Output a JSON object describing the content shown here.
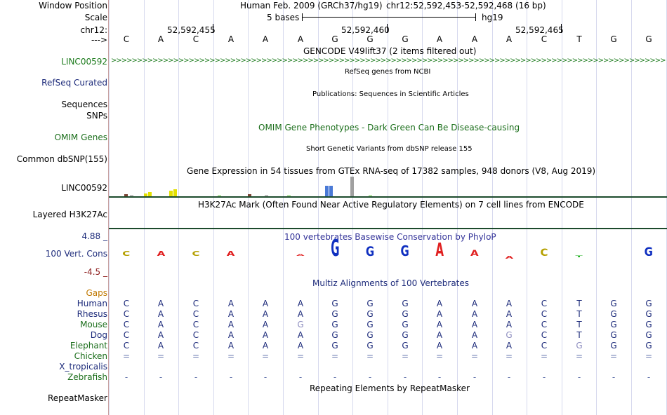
{
  "header": {
    "window_position_label": "Window Position",
    "scale_label": "Scale",
    "chr_label": "chr12:",
    "arrow_label": "--->",
    "assembly": "Human Feb. 2009 (GRCh37/hg19)",
    "position": "chr12:52,592,453-52,592,468 (16 bp)",
    "scale_text": "5 bases",
    "hg_label": "hg19",
    "ticks": [
      "52,592,455",
      "52,592,460",
      "52,592,465"
    ]
  },
  "bases": [
    "C",
    "A",
    "C",
    "A",
    "A",
    "A",
    "G",
    "G",
    "G",
    "A",
    "A",
    "A",
    "C",
    "T",
    "G",
    "G"
  ],
  "gencode": {
    "title": "GENCODE V49lift37 (2 items filtered out)",
    "gene_label": "LINC00592",
    "color": "#1b7a1b"
  },
  "refseq": {
    "title": "RefSeq genes from NCBI",
    "label": "RefSeq Curated",
    "color": "#1c2a7a"
  },
  "publications": {
    "title": "Publications: Sequences in Scientific Articles",
    "label1": "Sequences",
    "label2": "SNPs"
  },
  "omim": {
    "title": "OMIM Gene Phenotypes - Dark Green Can Be Disease-causing",
    "label": "OMIM Genes",
    "color": "#1b6e1b"
  },
  "dbsnp": {
    "title": "Short Genetic Variants from dbSNP release 155",
    "label": "Common dbSNP(155)"
  },
  "gtex": {
    "title": "Gene Expression in 54 tissues from GTEx RNA-seq of 17382 samples, 948 donors (V8, Aug 2019)",
    "label": "LINC00592",
    "bars": [
      {
        "color": "#7a4433",
        "value": 0.1
      },
      {
        "color": "#c0c0c0",
        "value": 0.05
      },
      {
        "color": "#e3e000",
        "value": 0.15
      },
      {
        "color": "#e3e000",
        "value": 0.2
      },
      {
        "color": "#e3e000",
        "value": 0.3
      },
      {
        "color": "#e3e000",
        "value": 0.35
      },
      {
        "color": "#b8e8a8",
        "value": 0.06
      },
      {
        "color": "#7a4433",
        "value": 0.1
      },
      {
        "color": "#c0c0c0",
        "value": 0.06
      },
      {
        "color": "#b8e8a8",
        "value": 0.08
      },
      {
        "color": "#4a7ad6",
        "value": 0.55
      },
      {
        "color": "#4a7ad6",
        "value": 0.55
      },
      {
        "color": "#a0a0a0",
        "value": 1.0
      },
      {
        "color": "#b8e8a8",
        "value": 0.06
      }
    ]
  },
  "h3k27ac": {
    "title": "H3K27Ac Mark (Often Found Near Active Regulatory Elements) on 7 cell lines from ENCODE",
    "label": "Layered H3K27Ac"
  },
  "phylop": {
    "title": "100 vertebrates Basewise Conservation by PhyloP",
    "label": "100 Vert. Cons",
    "max_label": "4.88 _",
    "min_label": "-4.5 _",
    "title_color": "#333399",
    "scores": [
      1.0,
      1.0,
      1.0,
      1.0,
      0,
      0.4,
      3.5,
      2.0,
      2.2,
      2.8,
      1.2,
      -0.6,
      1.5,
      -0.3,
      0,
      1.8
    ]
  },
  "multiz": {
    "title": "Multiz Alignments of 100 Vertebrates",
    "title_color": "#1c2a7a",
    "gaps_label": "Gaps",
    "gaps_color": "#c07800",
    "species": [
      {
        "name": "Human",
        "color": "#1c2a7a",
        "seq": [
          "C",
          "A",
          "C",
          "A",
          "A",
          "A",
          "G",
          "G",
          "G",
          "A",
          "A",
          "A",
          "C",
          "T",
          "G",
          "G"
        ]
      },
      {
        "name": "Rhesus",
        "color": "#1c2a7a",
        "seq": [
          "C",
          "A",
          "C",
          "A",
          "A",
          "A",
          "G",
          "G",
          "G",
          "A",
          "A",
          "A",
          "C",
          "T",
          "G",
          "G"
        ]
      },
      {
        "name": "Mouse",
        "color": "#1b6e1b",
        "seq": [
          "C",
          "A",
          "C",
          "A",
          "A",
          "G",
          "G",
          "G",
          "G",
          "A",
          "A",
          "A",
          "C",
          "T",
          "G",
          "G"
        ]
      },
      {
        "name": "Dog",
        "color": "#1c2a7a",
        "seq": [
          "C",
          "A",
          "C",
          "A",
          "A",
          "A",
          "G",
          "G",
          "G",
          "A",
          "A",
          "G",
          "C",
          "T",
          "G",
          "G"
        ]
      },
      {
        "name": "Elephant",
        "color": "#1b6e1b",
        "seq": [
          "C",
          "A",
          "C",
          "A",
          "A",
          "A",
          "G",
          "G",
          "G",
          "A",
          "A",
          "A",
          "C",
          "G",
          "G",
          "G"
        ]
      },
      {
        "name": "Chicken",
        "color": "#1b6e1b",
        "seq": [
          "=",
          "=",
          "=",
          "=",
          "=",
          "=",
          "=",
          "=",
          "=",
          "=",
          "=",
          "=",
          "=",
          "=",
          "=",
          "="
        ]
      },
      {
        "name": "X_tropicalis",
        "color": "#1c2a7a",
        "seq": []
      },
      {
        "name": "Zebrafish",
        "color": "#1b6e1b",
        "seq": [
          "-",
          "-",
          "-",
          "-",
          "-",
          "-",
          "-",
          "-",
          "-",
          "-",
          "-",
          "-",
          "-",
          "-",
          "-",
          "-"
        ]
      }
    ],
    "mismatch": {
      "Mouse": [
        5
      ],
      "Dog": [
        11
      ],
      "Elephant": [
        13
      ]
    }
  },
  "repeatmasker": {
    "title": "Repeating Elements by RepeatMasker",
    "label": "RepeatMasker"
  }
}
